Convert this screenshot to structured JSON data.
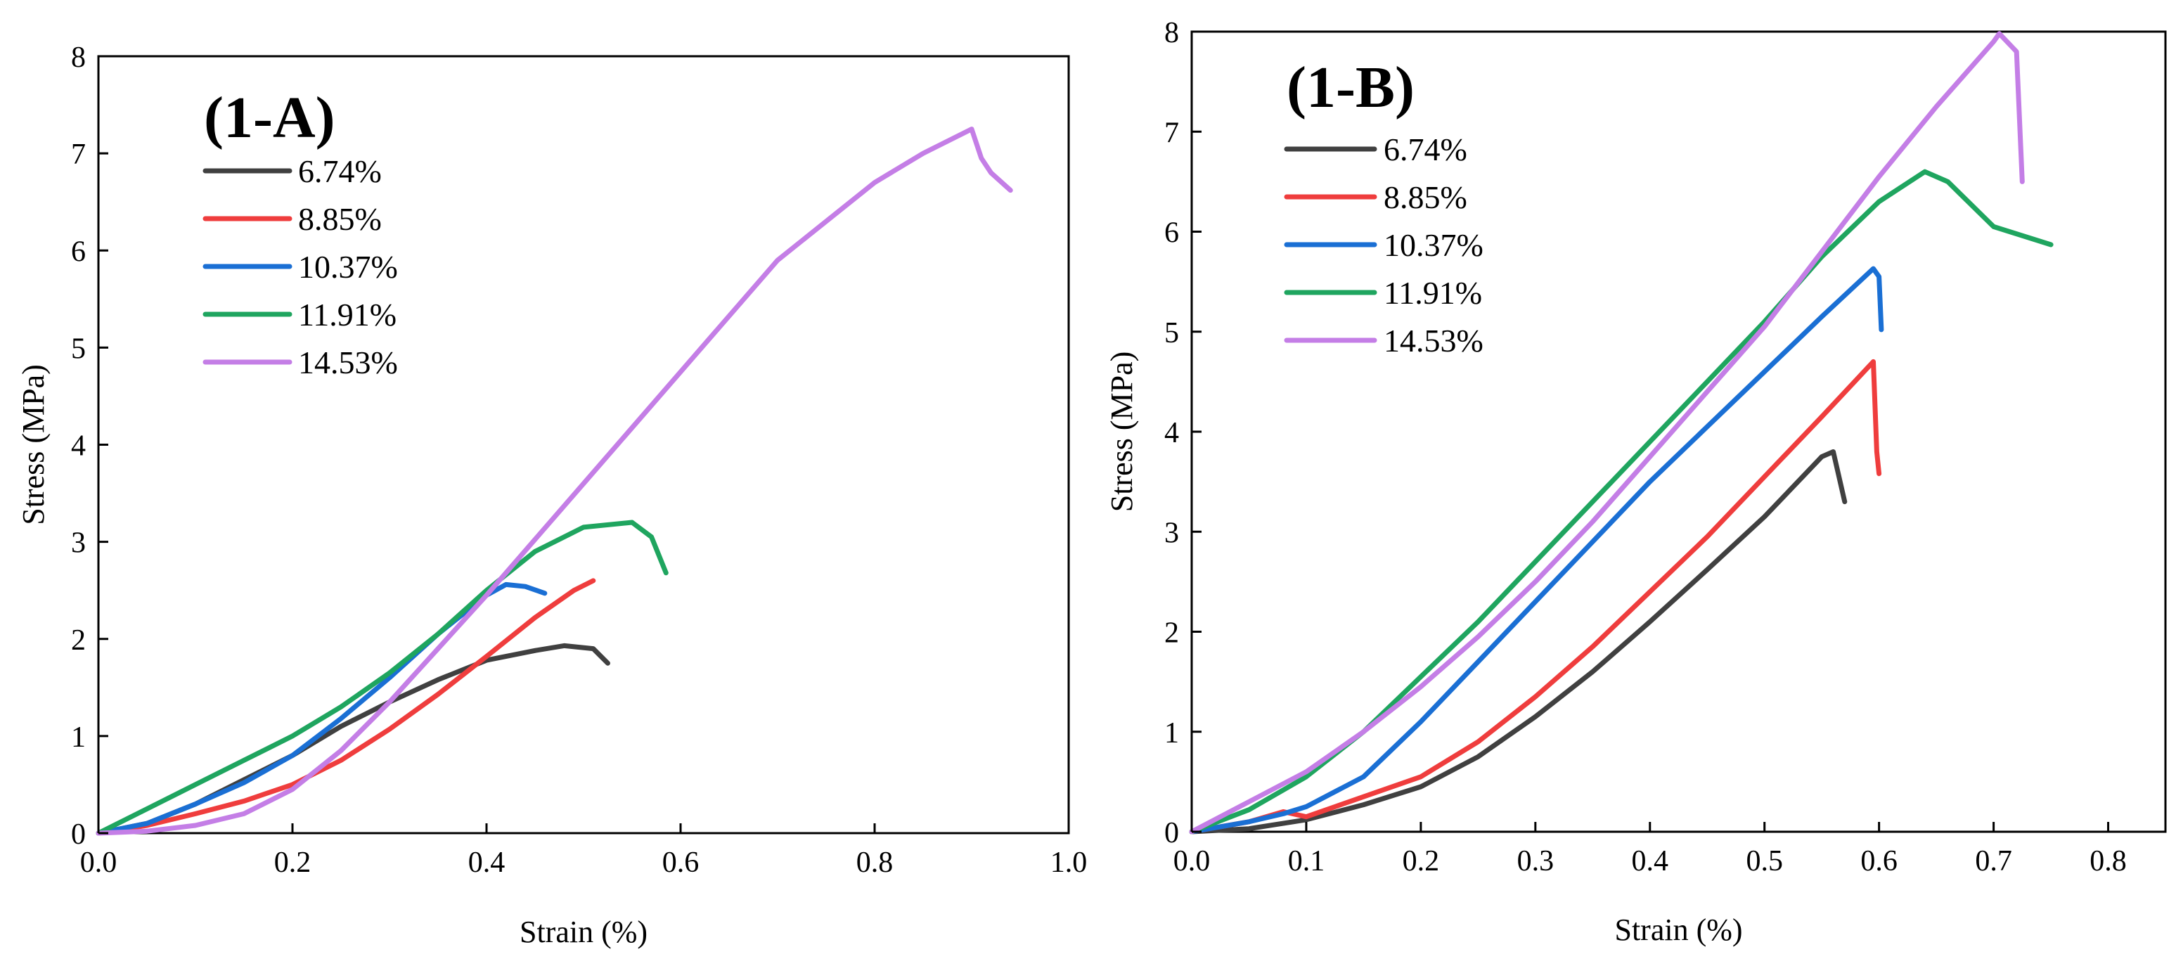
{
  "chart_data": [
    {
      "type": "line",
      "title": "(1-A)",
      "xlabel": "Strain (%)",
      "ylabel": "Stress (MPa)",
      "xlim": [
        0,
        1.0
      ],
      "ylim": [
        0,
        8
      ],
      "xticks": [
        "0.0",
        "0.2",
        "0.4",
        "0.6",
        "0.8",
        "1.0"
      ],
      "yticks": [
        "0",
        "1",
        "2",
        "3",
        "4",
        "5",
        "6",
        "7",
        "8"
      ],
      "grid": false,
      "legend_position": "top-left",
      "series": [
        {
          "name": "6.74%",
          "color": "#404040",
          "x": [
            0,
            0.05,
            0.1,
            0.15,
            0.2,
            0.25,
            0.3,
            0.35,
            0.4,
            0.45,
            0.48,
            0.51,
            0.525
          ],
          "y": [
            0,
            0.1,
            0.3,
            0.55,
            0.8,
            1.1,
            1.35,
            1.58,
            1.78,
            1.88,
            1.93,
            1.9,
            1.75
          ]
        },
        {
          "name": "8.85%",
          "color": "#ef3d3d",
          "x": [
            0,
            0.05,
            0.1,
            0.15,
            0.2,
            0.25,
            0.3,
            0.35,
            0.4,
            0.45,
            0.49,
            0.51
          ],
          "y": [
            0,
            0.08,
            0.2,
            0.33,
            0.5,
            0.75,
            1.07,
            1.43,
            1.82,
            2.22,
            2.5,
            2.6
          ]
        },
        {
          "name": "10.37%",
          "color": "#1a6fd4",
          "x": [
            0,
            0.05,
            0.1,
            0.15,
            0.2,
            0.25,
            0.3,
            0.35,
            0.4,
            0.42,
            0.44,
            0.46
          ],
          "y": [
            0,
            0.1,
            0.3,
            0.52,
            0.8,
            1.18,
            1.6,
            2.05,
            2.45,
            2.56,
            2.54,
            2.47
          ]
        },
        {
          "name": "11.91%",
          "color": "#1fa55f",
          "x": [
            0,
            0.05,
            0.1,
            0.15,
            0.2,
            0.25,
            0.3,
            0.35,
            0.4,
            0.45,
            0.5,
            0.55,
            0.57,
            0.585
          ],
          "y": [
            0,
            0.25,
            0.5,
            0.75,
            1.0,
            1.3,
            1.65,
            2.05,
            2.5,
            2.9,
            3.15,
            3.2,
            3.05,
            2.68
          ]
        },
        {
          "name": "14.53%",
          "color": "#c47ee6",
          "x": [
            0,
            0.05,
            0.1,
            0.15,
            0.2,
            0.25,
            0.3,
            0.35,
            0.4,
            0.5,
            0.6,
            0.7,
            0.8,
            0.85,
            0.9,
            0.91,
            0.92,
            0.94
          ],
          "y": [
            0,
            0.02,
            0.08,
            0.2,
            0.45,
            0.85,
            1.35,
            1.9,
            2.45,
            3.6,
            4.75,
            5.9,
            6.7,
            7.0,
            7.25,
            6.95,
            6.8,
            6.62
          ]
        }
      ]
    },
    {
      "type": "line",
      "title": "(1-B)",
      "xlabel": "Strain (%)",
      "ylabel": "Stress (MPa)",
      "xlim": [
        0,
        0.85
      ],
      "ylim": [
        0,
        8
      ],
      "xticks": [
        "0.0",
        "0.1",
        "0.2",
        "0.3",
        "0.4",
        "0.5",
        "0.6",
        "0.7",
        "0.8"
      ],
      "yticks": [
        "0",
        "1",
        "2",
        "3",
        "4",
        "5",
        "6",
        "7",
        "8"
      ],
      "grid": false,
      "legend_position": "top-left",
      "series": [
        {
          "name": "6.74%",
          "color": "#404040",
          "x": [
            0,
            0.05,
            0.1,
            0.15,
            0.2,
            0.25,
            0.3,
            0.35,
            0.4,
            0.45,
            0.5,
            0.55,
            0.56,
            0.57
          ],
          "y": [
            0,
            0.03,
            0.12,
            0.27,
            0.45,
            0.75,
            1.15,
            1.6,
            2.1,
            2.62,
            3.15,
            3.75,
            3.8,
            3.3
          ]
        },
        {
          "name": "8.85%",
          "color": "#ef3d3d",
          "x": [
            0,
            0.05,
            0.08,
            0.1,
            0.15,
            0.2,
            0.25,
            0.3,
            0.35,
            0.4,
            0.45,
            0.5,
            0.55,
            0.595,
            0.598,
            0.6
          ],
          "y": [
            0,
            0.1,
            0.2,
            0.15,
            0.35,
            0.55,
            0.9,
            1.35,
            1.85,
            2.4,
            2.95,
            3.55,
            4.15,
            4.7,
            3.8,
            3.58
          ]
        },
        {
          "name": "10.37%",
          "color": "#1a6fd4",
          "x": [
            0,
            0.05,
            0.08,
            0.1,
            0.15,
            0.2,
            0.25,
            0.3,
            0.35,
            0.4,
            0.45,
            0.5,
            0.55,
            0.595,
            0.6,
            0.602
          ],
          "y": [
            0,
            0.1,
            0.18,
            0.25,
            0.55,
            1.1,
            1.7,
            2.3,
            2.9,
            3.5,
            4.05,
            4.6,
            5.15,
            5.63,
            5.55,
            5.02
          ]
        },
        {
          "name": "11.91%",
          "color": "#1fa55f",
          "x": [
            0,
            0.05,
            0.1,
            0.15,
            0.2,
            0.25,
            0.3,
            0.35,
            0.4,
            0.45,
            0.5,
            0.55,
            0.6,
            0.64,
            0.66,
            0.7,
            0.75
          ],
          "y": [
            0,
            0.22,
            0.55,
            1.0,
            1.55,
            2.1,
            2.7,
            3.3,
            3.9,
            4.5,
            5.1,
            5.75,
            6.3,
            6.6,
            6.5,
            6.05,
            5.87
          ]
        },
        {
          "name": "14.53%",
          "color": "#c47ee6",
          "x": [
            0,
            0.05,
            0.1,
            0.15,
            0.2,
            0.25,
            0.3,
            0.35,
            0.4,
            0.45,
            0.5,
            0.55,
            0.6,
            0.65,
            0.7,
            0.705,
            0.72,
            0.725
          ],
          "y": [
            0,
            0.3,
            0.6,
            1.0,
            1.45,
            1.95,
            2.5,
            3.1,
            3.75,
            4.4,
            5.05,
            5.8,
            6.55,
            7.25,
            7.9,
            7.98,
            7.8,
            6.5
          ]
        }
      ]
    }
  ]
}
